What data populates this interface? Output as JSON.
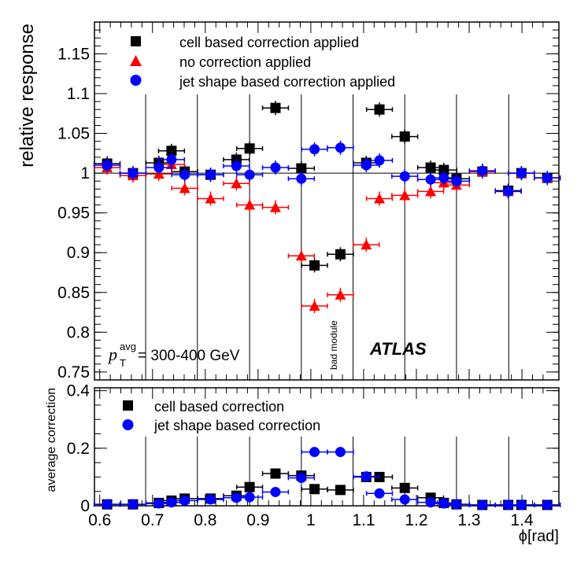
{
  "chart_data": [
    {
      "type": "scatter",
      "ylabel": "relative response",
      "ylim": [
        0.74,
        1.19
      ],
      "xlim": [
        0.59,
        1.47
      ],
      "yticks": [
        0.75,
        0.8,
        0.85,
        0.9,
        0.95,
        1,
        1.05,
        1.1,
        1.15
      ],
      "ytick_labels": [
        "0.75",
        "0.8",
        "0.85",
        "0.9",
        "0.95",
        "1",
        "1.05",
        "1.1",
        "1.15"
      ],
      "reference_line": 1.0,
      "module_boundaries": [
        0.687,
        0.785,
        0.884,
        0.982,
        1.08,
        1.178,
        1.276,
        1.375
      ],
      "annotations": {
        "kinematics_label_p": "p",
        "kinematics_label_sup": "avg",
        "kinematics_label_sub": "T",
        "kinematics_label_rest": " = 300-400 GeV",
        "bad_module": "bad module",
        "experiment": "ATLAS"
      },
      "series": [
        {
          "name": "cell based correction applied",
          "marker": "square",
          "color": "#000000",
          "x": [
            0.614,
            0.663,
            0.712,
            0.736,
            0.761,
            0.81,
            0.859,
            0.884,
            0.933,
            0.982,
            1.007,
            1.056,
            1.105,
            1.13,
            1.178,
            1.227,
            1.252,
            1.276,
            1.325,
            1.374,
            1.399,
            1.448
          ],
          "y": [
            1.012,
            1.0,
            1.013,
            1.028,
            1.002,
            0.998,
            1.017,
            1.031,
            1.082,
            1.006,
            0.884,
            0.898,
            1.013,
            1.08,
            1.046,
            1.007,
            1.004,
            0.993,
            1.002,
            0.978,
            1.0,
            0.994
          ]
        },
        {
          "name": "no correction applied",
          "marker": "triangle",
          "color": "#ff0000",
          "x": [
            0.614,
            0.663,
            0.712,
            0.736,
            0.761,
            0.81,
            0.859,
            0.884,
            0.933,
            0.982,
            1.007,
            1.056,
            1.105,
            1.13,
            1.178,
            1.227,
            1.252,
            1.276,
            1.325,
            1.374,
            1.399,
            1.448
          ],
          "y": [
            1.007,
            0.997,
            0.999,
            1.011,
            0.981,
            0.968,
            0.987,
            0.96,
            0.957,
            0.896,
            0.833,
            0.847,
            0.91,
            0.968,
            0.972,
            0.977,
            0.988,
            0.985,
            1.002,
            0.977,
            1.0,
            0.994
          ]
        },
        {
          "name": "jet shape based correction applied",
          "marker": "circle",
          "color": "#0000ff",
          "x": [
            0.614,
            0.663,
            0.712,
            0.736,
            0.761,
            0.81,
            0.859,
            0.884,
            0.933,
            0.982,
            1.007,
            1.056,
            1.105,
            1.13,
            1.178,
            1.227,
            1.252,
            1.276,
            1.325,
            1.374,
            1.399,
            1.448
          ],
          "y": [
            1.01,
            1.0,
            1.007,
            1.017,
            0.998,
            0.998,
            1.009,
            0.998,
            1.007,
            0.993,
            1.03,
            1.032,
            1.01,
            1.016,
            0.996,
            0.992,
            0.994,
            0.99,
            1.003,
            0.977,
            1.0,
            0.994
          ]
        }
      ]
    },
    {
      "type": "scatter",
      "xlabel": "ϕ[rad]",
      "ylabel": "average correction",
      "ylim": [
        0,
        0.41
      ],
      "xlim": [
        0.59,
        1.47
      ],
      "yticks": [
        0,
        0.2,
        0.4
      ],
      "ytick_labels": [
        "0",
        "0.2",
        "0.4"
      ],
      "xticks": [
        0.6,
        0.7,
        0.8,
        0.9,
        1.0,
        1.1,
        1.2,
        1.3,
        1.4
      ],
      "xtick_labels": [
        "0.6",
        "0.7",
        "0.8",
        "0.9",
        "1",
        "1.1",
        "1.2",
        "1.3",
        "1.4"
      ],
      "module_boundaries": [
        0.687,
        0.785,
        0.884,
        0.982,
        1.08,
        1.178,
        1.276,
        1.375
      ],
      "series": [
        {
          "name": "cell based correction",
          "marker": "square",
          "color": "#000000",
          "x": [
            0.614,
            0.663,
            0.712,
            0.736,
            0.761,
            0.81,
            0.859,
            0.884,
            0.933,
            0.982,
            1.007,
            1.056,
            1.105,
            1.13,
            1.178,
            1.227,
            1.252,
            1.276,
            1.325,
            1.374,
            1.399,
            1.448
          ],
          "y": [
            0.005,
            0.005,
            0.01,
            0.018,
            0.025,
            0.025,
            0.035,
            0.065,
            0.112,
            0.105,
            0.058,
            0.055,
            0.1,
            0.1,
            0.062,
            0.028,
            0.01,
            0.005,
            0.003,
            0.003,
            0.003,
            0.003
          ]
        },
        {
          "name": "jet shape based correction",
          "marker": "circle",
          "color": "#0000ff",
          "x": [
            0.614,
            0.663,
            0.712,
            0.736,
            0.761,
            0.81,
            0.859,
            0.884,
            0.933,
            0.982,
            1.007,
            1.056,
            1.105,
            1.13,
            1.178,
            1.227,
            1.252,
            1.276,
            1.325,
            1.374,
            1.399,
            1.448
          ],
          "y": [
            0.005,
            0.005,
            0.008,
            0.012,
            0.018,
            0.022,
            0.028,
            0.03,
            0.048,
            0.097,
            0.187,
            0.187,
            0.102,
            0.043,
            0.022,
            0.012,
            0.008,
            0.005,
            0.003,
            0.003,
            0.003,
            0.003
          ]
        }
      ]
    }
  ],
  "markers": {
    "square": "square-marker",
    "triangle": "triangle-marker",
    "circle": "circle-marker"
  }
}
